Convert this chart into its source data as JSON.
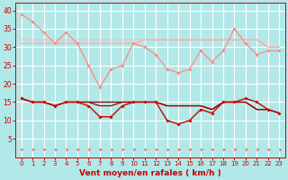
{
  "x": [
    0,
    1,
    2,
    3,
    4,
    5,
    6,
    7,
    8,
    9,
    10,
    11,
    12,
    13,
    14,
    15,
    16,
    17,
    18,
    19,
    20,
    21,
    22,
    23
  ],
  "line1": [
    39,
    37,
    34,
    31,
    34,
    31,
    25,
    19,
    24,
    25,
    31,
    30,
    28,
    24,
    23,
    24,
    29,
    26,
    29,
    35,
    31,
    28,
    29,
    29
  ],
  "line2": [
    31,
    31,
    31,
    31,
    31,
    31,
    31,
    31,
    31,
    31,
    31,
    32,
    32,
    32,
    32,
    32,
    32,
    32,
    32,
    32,
    32,
    32,
    30,
    30
  ],
  "line3": [
    32,
    32,
    32,
    32,
    32,
    32,
    32,
    32,
    32,
    32,
    32,
    32,
    32,
    32,
    32,
    32,
    32,
    32,
    32,
    32,
    32,
    32,
    30,
    30
  ],
  "line4": [
    16,
    15,
    15,
    14,
    15,
    15,
    14,
    11,
    11,
    14,
    15,
    15,
    15,
    10,
    9,
    10,
    13,
    12,
    15,
    15,
    16,
    15,
    13,
    12
  ],
  "line5": [
    16,
    15,
    15,
    14,
    15,
    15,
    15,
    14,
    14,
    15,
    15,
    15,
    15,
    14,
    14,
    14,
    14,
    13,
    15,
    15,
    15,
    13,
    13,
    12
  ],
  "line6": [
    16,
    15,
    15,
    14,
    15,
    15,
    15,
    15,
    15,
    15,
    15,
    15,
    15,
    14,
    14,
    14,
    14,
    13,
    15,
    15,
    15,
    13,
    13,
    12
  ],
  "background_color": "#b2e8e8",
  "grid_color": "#ffffff",
  "line1_color": "#ff8888",
  "line2_color": "#ffaaaa",
  "line3_color": "#ffbbbb",
  "line4_color": "#cc0000",
  "line5_color": "#990000",
  "line6_color": "#880000",
  "arrow_color": "#ff4444",
  "xlabel": "Vent moyen/en rafales ( km/h )",
  "xlabel_color": "#cc0000",
  "tick_color": "#cc0000",
  "ylim": [
    0,
    42
  ],
  "xlim": [
    -0.5,
    23.5
  ],
  "yticks": [
    5,
    10,
    15,
    20,
    25,
    30,
    35,
    40
  ],
  "xticks": [
    0,
    1,
    2,
    3,
    4,
    5,
    6,
    7,
    8,
    9,
    10,
    11,
    12,
    13,
    14,
    15,
    16,
    17,
    18,
    19,
    20,
    21,
    22,
    23
  ]
}
